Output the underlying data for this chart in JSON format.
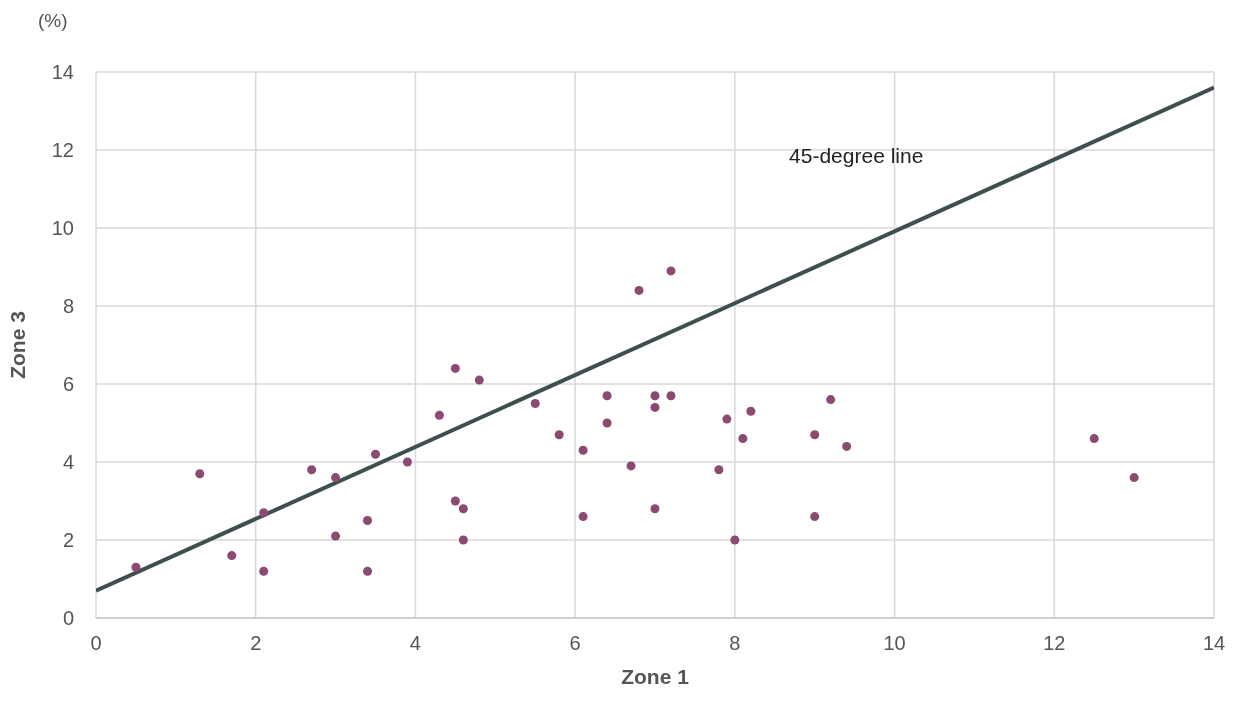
{
  "chart_data": {
    "type": "scatter",
    "xlabel": "Zone 1",
    "ylabel": "Zone 3",
    "annotations": [
      "(%)"
    ],
    "xlim": [
      0,
      14
    ],
    "ylim": [
      0,
      14
    ],
    "xticks": [
      0,
      2,
      4,
      6,
      8,
      10,
      12,
      14
    ],
    "yticks": [
      0,
      2,
      4,
      6,
      8,
      10,
      12,
      14
    ],
    "grid": true,
    "series": [
      {
        "color": "#8a4a72",
        "marker": "circle",
        "x": [
          0.5,
          1.3,
          1.7,
          2.1,
          2.1,
          2.7,
          3.0,
          3.0,
          3.4,
          3.4,
          3.5,
          3.9,
          4.3,
          4.5,
          4.5,
          4.6,
          4.6,
          4.8,
          5.5,
          5.8,
          6.1,
          6.1,
          6.4,
          6.4,
          6.7,
          6.8,
          7.0,
          7.0,
          7.0,
          7.2,
          7.2,
          7.8,
          7.9,
          8.0,
          8.1,
          8.2,
          9.0,
          9.0,
          9.2,
          9.4,
          12.5,
          13.0
        ],
        "values": [
          1.3,
          3.7,
          1.6,
          2.7,
          1.2,
          3.8,
          3.6,
          2.1,
          2.5,
          1.2,
          4.2,
          4.0,
          5.2,
          3.0,
          6.4,
          2.8,
          2.0,
          6.1,
          5.5,
          4.7,
          2.6,
          4.3,
          5.7,
          5.0,
          3.9,
          8.4,
          5.7,
          5.4,
          2.8,
          8.9,
          5.7,
          3.8,
          5.1,
          2.0,
          4.6,
          5.3,
          2.6,
          4.7,
          5.6,
          4.4,
          4.6,
          3.6
        ]
      },
      {
        "type": "line",
        "name": "45-degree line",
        "color": "#3f4e4f",
        "line_style": "solid",
        "marker": "none",
        "x": [
          0,
          14
        ],
        "values": [
          0.7,
          13.6
        ]
      }
    ]
  }
}
